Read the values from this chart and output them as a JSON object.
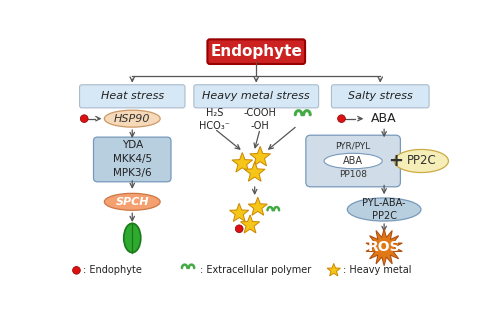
{
  "title": "Endophyte",
  "title_bg": "#cc2222",
  "title_text_color": "white",
  "stress_labels": [
    "Heat stress",
    "Heavy metal stress",
    "Salty stress"
  ],
  "stress_box_color": "#d6e8f5",
  "stress_box_border": "#aabbcc",
  "background": "white",
  "arrow_color": "#555555",
  "hsp90_text": "HSP90",
  "hsp90_bg": "#f5d9b8",
  "yda_text": "YDA\nMKK4/5\nMPK3/6",
  "yda_bg": "#b8cfe0",
  "spch_text": "SPCH",
  "spch_bg": "#f5a070",
  "aba_text": "ABA",
  "pyr_bg": "#d0dde8",
  "pp2c_text": "PP2C",
  "pp2c_bg": "#f5eeb8",
  "pylabatext": "PYL-ABA-\nPP2C",
  "pylabacolor": "#b8cfe0",
  "ros_text": "ROS",
  "ros_bg": "#e07818",
  "h2s_text": "H₂S\nHCO₃⁻",
  "cooh_text": "-COOH\n-OH",
  "star_color": "#f5c518",
  "star_edge": "#cc8800",
  "endophyte_dot_color": "#dd1111",
  "legend_endophyte": ": Endophyte",
  "legend_polymer": ": Extracellular polymer",
  "legend_metal": ": Heavy metal"
}
